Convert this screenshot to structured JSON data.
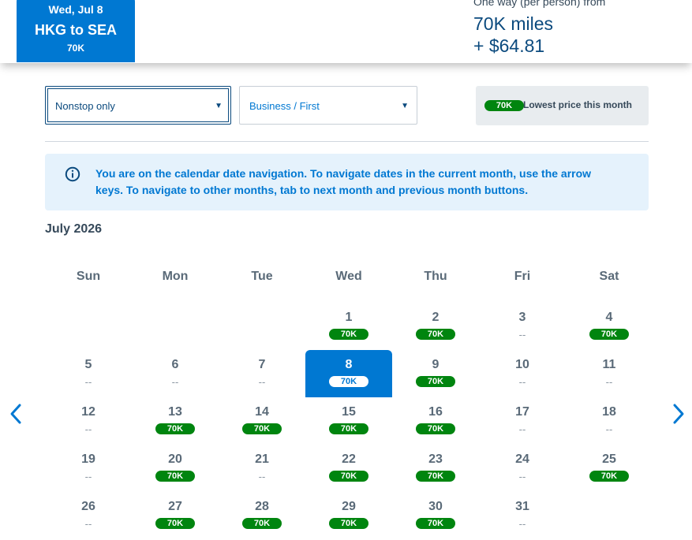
{
  "header": {
    "tab": {
      "date": "Wed, Jul 8",
      "route": "HKG to SEA",
      "price": "70K"
    },
    "fare": {
      "from_label": "One way (per person) from",
      "miles": "70K miles",
      "cash": "+ $64.81"
    }
  },
  "filters": {
    "stops": {
      "value": "Nonstop only"
    },
    "cabin": {
      "value": "Business / First"
    }
  },
  "legend": {
    "pill": "70K",
    "label": "Lowest price this month"
  },
  "info": {
    "message": "You are on the calendar date navigation. To navigate dates in the current month, use the arrow keys. To navigate to other months, tab to next month and previous month buttons."
  },
  "calendar": {
    "month": "July 2026",
    "weekdays": [
      "Sun",
      "Mon",
      "Tue",
      "Wed",
      "Thu",
      "Fri",
      "Sat"
    ],
    "selected_day": "8",
    "no_price": "--",
    "days": [
      {
        "d": "1",
        "p": "70K"
      },
      {
        "d": "2",
        "p": "70K"
      },
      {
        "d": "3",
        "p": "--"
      },
      {
        "d": "4",
        "p": "70K"
      },
      {
        "d": "5",
        "p": "--"
      },
      {
        "d": "6",
        "p": "--"
      },
      {
        "d": "7",
        "p": "--"
      },
      {
        "d": "8",
        "p": "70K"
      },
      {
        "d": "9",
        "p": "70K"
      },
      {
        "d": "10",
        "p": "--"
      },
      {
        "d": "11",
        "p": "--"
      },
      {
        "d": "12",
        "p": "--"
      },
      {
        "d": "13",
        "p": "70K"
      },
      {
        "d": "14",
        "p": "70K"
      },
      {
        "d": "15",
        "p": "70K"
      },
      {
        "d": "16",
        "p": "70K"
      },
      {
        "d": "17",
        "p": "--"
      },
      {
        "d": "18",
        "p": "--"
      },
      {
        "d": "19",
        "p": "--"
      },
      {
        "d": "20",
        "p": "70K"
      },
      {
        "d": "21",
        "p": "--"
      },
      {
        "d": "22",
        "p": "70K"
      },
      {
        "d": "23",
        "p": "70K"
      },
      {
        "d": "24",
        "p": "--"
      },
      {
        "d": "25",
        "p": "70K"
      },
      {
        "d": "26",
        "p": "--"
      },
      {
        "d": "27",
        "p": "70K"
      },
      {
        "d": "28",
        "p": "70K"
      },
      {
        "d": "29",
        "p": "70K"
      },
      {
        "d": "30",
        "p": "70K"
      },
      {
        "d": "31",
        "p": "--"
      }
    ]
  },
  "colors": {
    "brand_blue": "#0078d2",
    "dark_blue": "#0b4a7e",
    "price_green": "#00850f",
    "info_bg": "#e5f2fc"
  },
  "icons": {
    "info": "info-circle-icon",
    "prev": "chevron-left-icon",
    "next": "chevron-right-icon",
    "select": "caret-down-icon"
  }
}
